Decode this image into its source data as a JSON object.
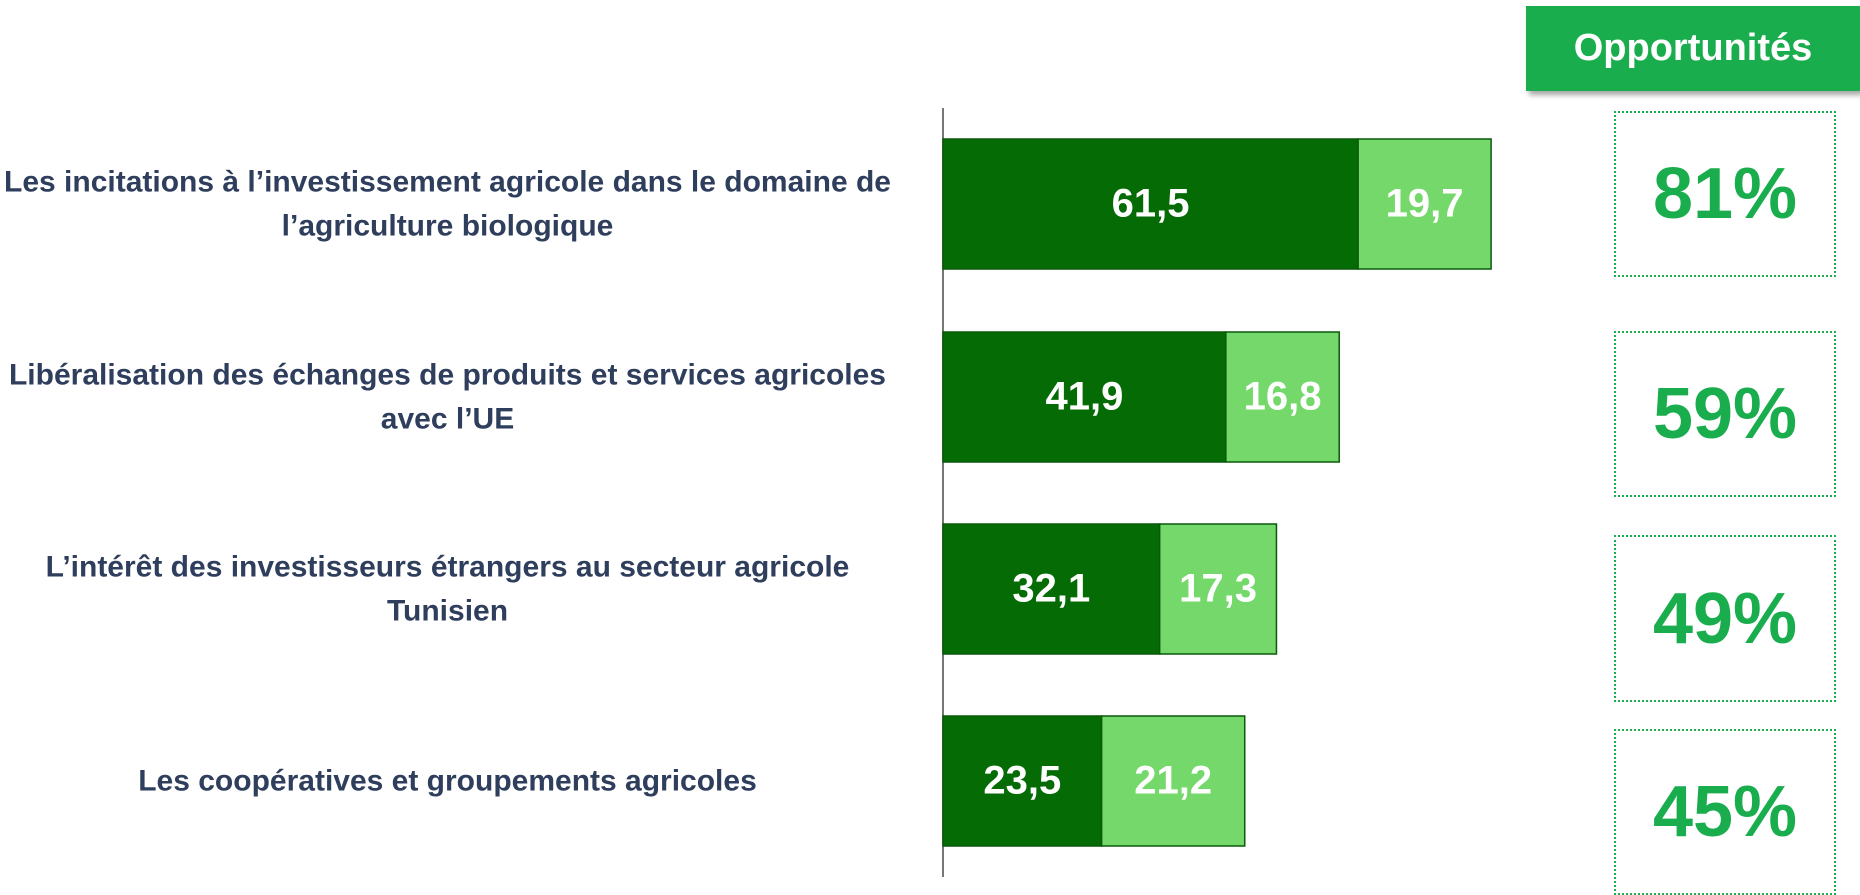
{
  "chart_data": {
    "type": "stacked_barh",
    "header": "Opportunités",
    "categories": [
      "Les incitations à l’investissement agricole dans le domaine de l’agriculture biologique",
      "Libéralisation des échanges de produits et services agricoles avec l’UE",
      "L’intérêt des investisseurs étrangers au secteur agricole Tunisien",
      "Les coopératives et groupements agricoles"
    ],
    "series": [
      {
        "color": "#056b05",
        "values": [
          61.5,
          41.9,
          32.1,
          23.5
        ],
        "value_labels": [
          "61,5",
          "41,9",
          "32,1",
          "23,5"
        ]
      },
      {
        "color": "#74d96a",
        "values": [
          19.7,
          16.8,
          17.3,
          21.2
        ],
        "value_labels": [
          "19,7",
          "16,8",
          "17,3",
          "21,2"
        ]
      }
    ],
    "totals": {
      "color": "#1aad4e",
      "values": [
        81,
        59,
        49,
        45
      ],
      "value_labels": [
        "81%",
        "59%",
        "49%",
        "45%"
      ]
    },
    "xlim": [
      0,
      100
    ]
  }
}
